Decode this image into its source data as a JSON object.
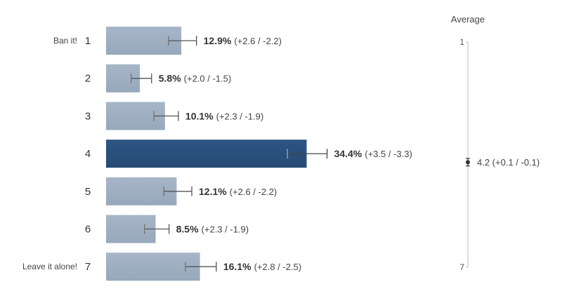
{
  "chart_data": {
    "type": "bar",
    "orientation": "horizontal",
    "categories": [
      "1",
      "2",
      "3",
      "4",
      "5",
      "6",
      "7"
    ],
    "anchor_labels": [
      "Ban it!",
      "",
      "",
      "",
      "",
      "",
      "Leave it alone!"
    ],
    "values": [
      12.9,
      5.8,
      10.1,
      34.4,
      12.1,
      8.5,
      16.1
    ],
    "ci_plus": [
      2.6,
      2.0,
      2.3,
      3.5,
      2.6,
      2.3,
      2.8
    ],
    "ci_minus": [
      2.2,
      1.5,
      1.9,
      3.3,
      2.2,
      1.9,
      2.5
    ],
    "value_labels": [
      "12.9%",
      "5.8%",
      "10.1%",
      "34.4%",
      "12.1%",
      "8.5%",
      "16.1%"
    ],
    "ci_labels": [
      "(+2.6 / -2.2)",
      "(+2.0 / -1.5)",
      "(+2.3 / -1.9)",
      "(+3.5 / -3.3)",
      "(+2.6 / -2.2)",
      "(+2.3 / -1.9)",
      "(+2.8 / -2.5)"
    ],
    "highlight_index": 3,
    "colors": {
      "bar": "#97a8bc",
      "bar_highlight": "#254a74",
      "errorbar": "#555555",
      "axis": "#bbbbbb"
    },
    "grid": false,
    "average": {
      "title": "Average",
      "scale_min": 1,
      "scale_max": 7,
      "min_label": "1",
      "max_label": "7",
      "value": 4.2,
      "ci_plus": 0.1,
      "ci_minus": 0.1,
      "value_label": "4.2 (+0.1 / -0.1)"
    }
  }
}
